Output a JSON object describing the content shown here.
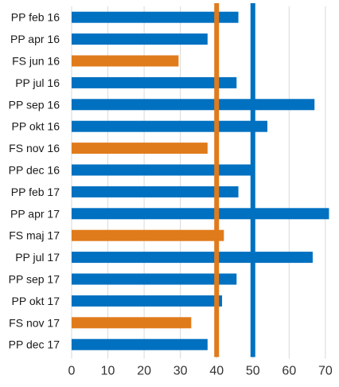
{
  "chart_data": {
    "type": "bar",
    "orientation": "horizontal",
    "categories": [
      "PP feb 16",
      "PP apr 16",
      "FS jun 16",
      "PP jul 16",
      "PP sep 16",
      "PP okt 16",
      "FS nov 16",
      "PP dec 16",
      "PP feb 17",
      "PP apr 17",
      "FS maj 17",
      "PP jul 17",
      "PP sep 17",
      "PP okt 17",
      "FS nov 17",
      "PP dec 17"
    ],
    "values": [
      46,
      37.5,
      29.5,
      45.5,
      67,
      54,
      37.5,
      50,
      46,
      71,
      42,
      66.5,
      45.5,
      41.5,
      33,
      37.5
    ],
    "bar_colors": [
      "#0070C0",
      "#0070C0",
      "#E07B1B",
      "#0070C0",
      "#0070C0",
      "#0070C0",
      "#E07B1B",
      "#0070C0",
      "#0070C0",
      "#0070C0",
      "#E07B1B",
      "#0070C0",
      "#0070C0",
      "#0070C0",
      "#E07B1B",
      "#0070C0"
    ],
    "xlim": [
      0,
      72
    ],
    "xticks": [
      0,
      10,
      20,
      30,
      40,
      50,
      60,
      70
    ],
    "grid": true,
    "reference_lines": [
      {
        "value": 40,
        "color": "#E07B1B"
      },
      {
        "value": 50,
        "color": "#0070C0"
      }
    ],
    "title": "",
    "xlabel": "",
    "ylabel": ""
  }
}
